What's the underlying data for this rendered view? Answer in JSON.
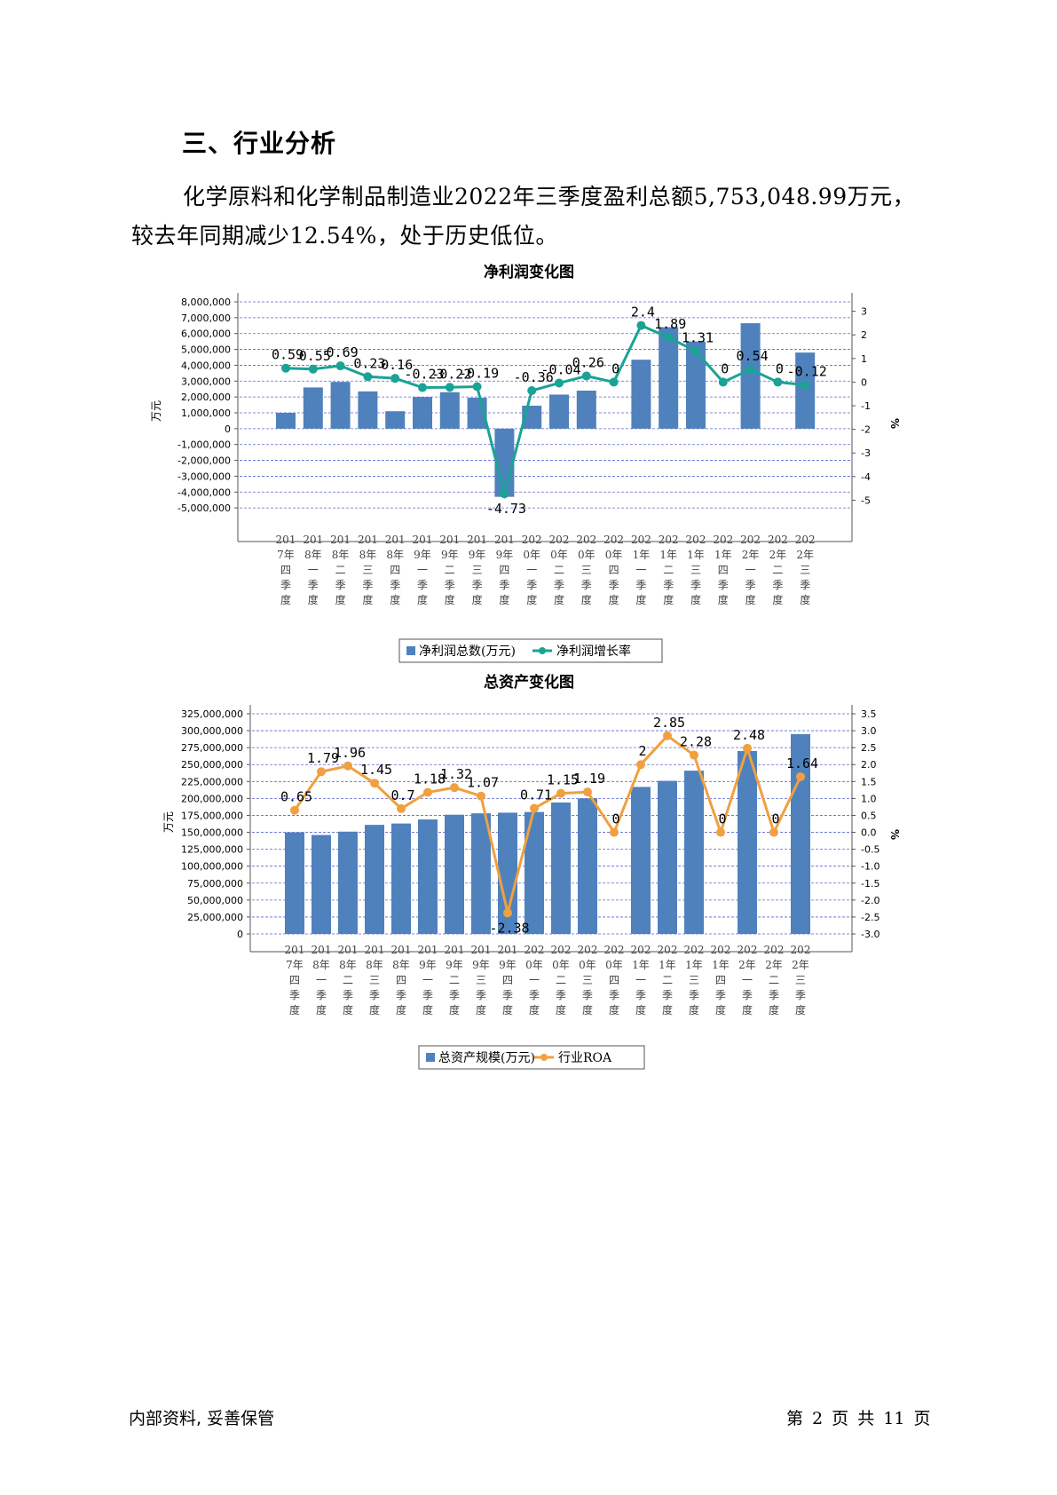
{
  "section": {
    "heading": "三、行业分析",
    "paragraph": "化学原料和化学制品制造业2022年三季度盈利总额5,753,048.99万元，较去年同期减少12.54%，处于历史低位。"
  },
  "chart_data": [
    {
      "type": "bar",
      "title": "净利润变化图",
      "ylabel": "万元",
      "y2label": "%",
      "ylim": [
        -6000000,
        8000000
      ],
      "y2lim": [
        -6,
        3.4
      ],
      "yticks": [
        "8,000,000",
        "7,000,000",
        "6,000,000",
        "5,000,000",
        "4,000,000",
        "3,000,000",
        "2,000,000",
        "1,000,000",
        "0",
        "-1,000,000",
        "-2,000,000",
        "-3,000,000",
        "-4,000,000",
        "-5,000,000"
      ],
      "y2ticks": [
        "3",
        "2",
        "1",
        "0",
        "-1",
        "-2",
        "-3",
        "-4",
        "-5"
      ],
      "categories": [
        "2017年四季度",
        "2018年一季度",
        "2018年二季度",
        "2018年三季度",
        "2018年四季度",
        "2019年一季度",
        "2019年二季度",
        "2019年三季度",
        "2019年四季度",
        "2020年一季度",
        "2020年二季度",
        "2020年三季度",
        "2020年四季度",
        "2021年一季度",
        "2021年二季度",
        "2021年三季度",
        "2021年四季度",
        "2022年一季度",
        "2022年二季度",
        "2022年三季度"
      ],
      "series": [
        {
          "name": "净利润总数(万元)",
          "kind": "bar",
          "axis": "left",
          "color": "#4f81bd",
          "values": [
            1000000,
            2600000,
            2950000,
            2350000,
            1100000,
            2000000,
            2300000,
            1950000,
            -4300000,
            1450000,
            2150000,
            2400000,
            0,
            4350000,
            6400000,
            5500000,
            0,
            6650000,
            0,
            4800000
          ]
        },
        {
          "name": "净利润增长率",
          "kind": "line",
          "axis": "right",
          "color": "#1aa394",
          "values": [
            0.59,
            0.55,
            0.69,
            0.23,
            0.16,
            -0.23,
            -0.22,
            -0.19,
            -4.73,
            -0.36,
            -0.04,
            0.26,
            0,
            2.4,
            1.89,
            1.31,
            0,
            0.54,
            0,
            -0.12
          ],
          "labels": [
            "0.59",
            "0.55",
            "0.69",
            "0.23",
            "0.16",
            "-0.23",
            "-0.22",
            "-0.19",
            "-4.73",
            "-0.36",
            "-0.04",
            "0.26",
            "0",
            "2.4",
            "1.89",
            "1.31",
            "0",
            "0.54",
            "0",
            "-0.12"
          ]
        }
      ],
      "grid": true,
      "legend": "bottom"
    },
    {
      "type": "bar",
      "title": "总资产变化图",
      "ylabel": "万元",
      "y2label": "%",
      "ylim": [
        0,
        325000000
      ],
      "y2lim": [
        -3.0,
        3.5
      ],
      "yticks": [
        "325,000,000",
        "300,000,000",
        "275,000,000",
        "250,000,000",
        "225,000,000",
        "200,000,000",
        "175,000,000",
        "150,000,000",
        "125,000,000",
        "100,000,000",
        "75,000,000",
        "50,000,000",
        "25,000,000",
        "0"
      ],
      "y2ticks": [
        "3.5",
        "3.0",
        "2.5",
        "2.0",
        "1.5",
        "1.0",
        "0.5",
        "0.0",
        "-0.5",
        "-1.0",
        "-1.5",
        "-2.0",
        "-2.5",
        "-3.0"
      ],
      "categories": [
        "2017年四季度",
        "2018年一季度",
        "2018年二季度",
        "2018年三季度",
        "2018年四季度",
        "2019年一季度",
        "2019年二季度",
        "2019年三季度",
        "2019年四季度",
        "2020年一季度",
        "2020年二季度",
        "2020年三季度",
        "2020年四季度",
        "2021年一季度",
        "2021年二季度",
        "2021年三季度",
        "2021年四季度",
        "2022年一季度",
        "2022年二季度",
        "2022年三季度"
      ],
      "series": [
        {
          "name": "总资产规模(万元)",
          "kind": "bar",
          "axis": "left",
          "color": "#4f81bd",
          "values": [
            150000000,
            146000000,
            151000000,
            161000000,
            163000000,
            169000000,
            176000000,
            178000000,
            179000000,
            180000000,
            194000000,
            200000000,
            0,
            217000000,
            226000000,
            241000000,
            0,
            270000000,
            0,
            295000000
          ]
        },
        {
          "name": "行业ROA",
          "kind": "line",
          "axis": "right",
          "color": "#f0a040",
          "values": [
            0.65,
            1.79,
            1.96,
            1.45,
            0.7,
            1.18,
            1.32,
            1.07,
            -2.38,
            0.71,
            1.15,
            1.19,
            0,
            2,
            2.85,
            2.28,
            0,
            2.48,
            0,
            1.64
          ],
          "labels": [
            "0.65",
            "1.79",
            "1.96",
            "1.45",
            "0.7",
            "1.18",
            "1.32",
            "1.07",
            "-2.38",
            "0.71",
            "1.15",
            "1.19",
            "0",
            "2",
            "2.85",
            "2.28",
            "0",
            "2.48",
            "0",
            "1.64"
          ]
        }
      ],
      "grid": true,
      "legend": "bottom"
    }
  ],
  "footer": {
    "left": "内部资料, 妥善保管",
    "right": "第 2 页  共 11 页"
  }
}
